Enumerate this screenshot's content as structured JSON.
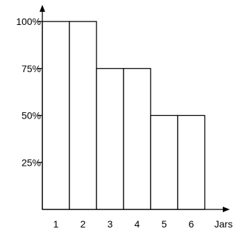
{
  "chart_data": {
    "type": "bar",
    "categories": [
      "1",
      "2",
      "3",
      "4",
      "5",
      "6"
    ],
    "values": [
      100,
      100,
      75,
      75,
      50,
      50
    ],
    "y_ticks": [
      {
        "value": 25,
        "label": "25%"
      },
      {
        "value": 50,
        "label": "50%"
      },
      {
        "value": 75,
        "label": "75%"
      },
      {
        "value": 100,
        "label": "100%"
      }
    ],
    "title": "",
    "xlabel": "Jars",
    "ylabel": "",
    "ylim": [
      0,
      100
    ],
    "grid": false,
    "legend": "none",
    "bar_fill": "#ffffff",
    "bar_stroke": "#000000",
    "axis_color": "#000000"
  }
}
